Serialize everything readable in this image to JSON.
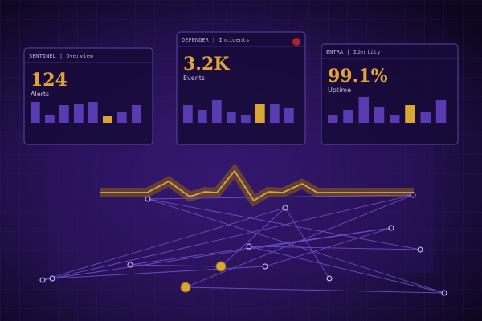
{
  "cards": [
    {
      "header": "SENTINEL | Overview",
      "value": "124",
      "label": "Alerts",
      "bars": [
        26,
        10,
        22,
        24,
        26,
        8,
        14,
        22
      ],
      "color": "#5a3ab0",
      "highlight_color": "#d9a634",
      "highlight": 5
    },
    {
      "header": "DEFENDER | Incidents",
      "value": "3.2K",
      "label": "Events",
      "bars": [
        22,
        16,
        28,
        14,
        10,
        24,
        24,
        18
      ],
      "color": "#5a3ab0",
      "highlight_color": "#d9a634",
      "highlight": 5
    },
    {
      "header": "ENTRA | Identity",
      "value": "99.1%",
      "label": "Uptime",
      "bars": [
        10,
        16,
        32,
        20,
        10,
        22,
        14,
        28
      ],
      "color": "#5a3ab0",
      "highlight_color": "#d9a634",
      "highlight": 5
    }
  ]
}
